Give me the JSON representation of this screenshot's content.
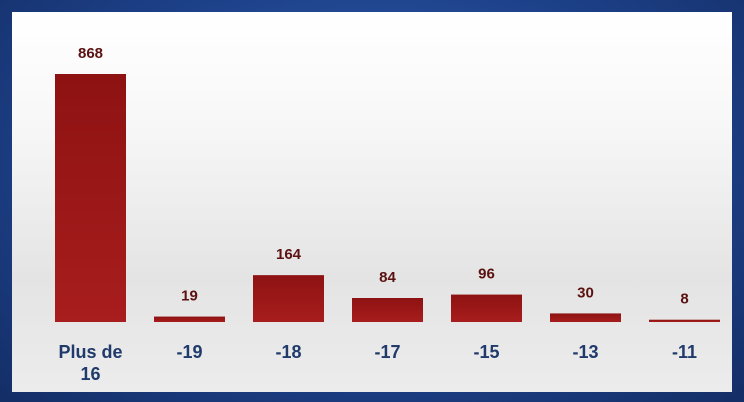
{
  "chart_data": {
    "type": "bar",
    "categories": [
      "Plus de 16",
      "-19",
      "-18",
      "-17",
      "-15",
      "-13",
      "-11"
    ],
    "values": [
      868,
      19,
      164,
      84,
      96,
      30,
      8
    ],
    "color": "#9b1616"
  }
}
